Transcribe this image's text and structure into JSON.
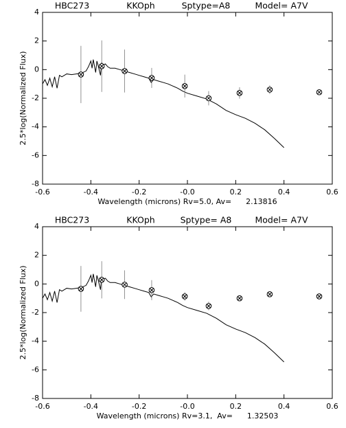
{
  "chart_data": [
    {
      "type": "line",
      "titles": [
        "HBC273",
        "KKOph",
        "Sptype=A8",
        "Model= A7V"
      ],
      "xlabel": "Wavelength (microns) Rv=5.0, Av=      2.13816",
      "ylabel": "2.5*log(Normalized Flux)",
      "xlim": [
        -0.6,
        0.6
      ],
      "ylim": [
        -8,
        4
      ],
      "xticks": [
        -0.6,
        -0.4,
        -0.2,
        {
          "value": 0,
          "label": "-0.0"
        },
        0.2,
        0.4,
        0.6
      ],
      "yticks": [
        4,
        2,
        0,
        -2,
        -4,
        -6,
        -8
      ],
      "series": [
        {
          "type": "line",
          "color": "#000000",
          "x": [
            -0.6,
            -0.59,
            -0.58,
            -0.57,
            -0.56,
            -0.55,
            -0.54,
            -0.53,
            -0.52,
            -0.5,
            -0.48,
            -0.46,
            -0.44,
            -0.42,
            -0.41,
            -0.4,
            -0.395,
            -0.39,
            -0.38,
            -0.375,
            -0.37,
            -0.36,
            -0.355,
            -0.35,
            -0.34,
            -0.33,
            -0.32,
            -0.3,
            -0.28,
            -0.26,
            -0.24,
            -0.22,
            -0.2,
            -0.18,
            -0.16,
            -0.15,
            -0.14,
            -0.12,
            -0.1,
            -0.08,
            -0.06,
            -0.04,
            -0.02,
            0,
            0.04,
            0.08,
            0.12,
            0.16,
            0.2,
            0.24,
            0.28,
            0.32,
            0.36,
            0.4
          ],
          "values": [
            -1.0,
            -0.7,
            -1.1,
            -0.6,
            -1.2,
            -0.5,
            -1.3,
            -0.4,
            -0.5,
            -0.3,
            -0.35,
            -0.3,
            -0.25,
            -0.1,
            0.2,
            0.6,
            0.1,
            0.7,
            -0.2,
            0.6,
            0.3,
            -0.4,
            0.5,
            0.3,
            0.4,
            0.2,
            0.1,
            0.1,
            0.0,
            -0.1,
            -0.2,
            -0.3,
            -0.4,
            -0.5,
            -0.6,
            -0.9,
            -0.7,
            -0.8,
            -0.9,
            -1.0,
            -1.15,
            -1.3,
            -1.5,
            -1.65,
            -1.85,
            -2.05,
            -2.4,
            -2.85,
            -3.15,
            -3.4,
            -3.75,
            -4.2,
            -4.8,
            -5.45
          ]
        },
        {
          "type": "scatter",
          "color": "#000000",
          "x": [
            -0.441,
            -0.355,
            -0.26,
            -0.148,
            -0.011,
            0.088,
            0.216,
            0.341,
            0.546
          ],
          "values": [
            -0.34,
            0.24,
            -0.1,
            -0.58,
            -1.15,
            -2.0,
            -1.63,
            -1.4,
            -1.58
          ],
          "errors": [
            2.0,
            1.8,
            1.5,
            0.7,
            0.8,
            0.5,
            0.4,
            0.3,
            0.2
          ]
        }
      ]
    },
    {
      "type": "line",
      "titles": [
        "HBC273",
        "KKOph",
        "Sptype= A8",
        "Model= A7V"
      ],
      "xlabel": "Wavelength (microns) Rv=3.1,  Av=      1.32503",
      "ylabel": "2.5*log(Normalized Flux)",
      "xlim": [
        -0.6,
        0.6
      ],
      "ylim": [
        -8,
        4
      ],
      "xticks": [
        -0.6,
        -0.4,
        -0.2,
        {
          "value": 0,
          "label": "-0.0"
        },
        0.2,
        0.4,
        0.6
      ],
      "yticks": [
        4,
        2,
        0,
        -2,
        -4,
        -6,
        -8
      ],
      "series": [
        {
          "type": "line",
          "color": "#000000",
          "x": [
            -0.6,
            -0.59,
            -0.58,
            -0.57,
            -0.56,
            -0.55,
            -0.54,
            -0.53,
            -0.52,
            -0.5,
            -0.48,
            -0.46,
            -0.44,
            -0.42,
            -0.41,
            -0.4,
            -0.395,
            -0.39,
            -0.38,
            -0.375,
            -0.37,
            -0.36,
            -0.355,
            -0.35,
            -0.34,
            -0.33,
            -0.32,
            -0.3,
            -0.28,
            -0.26,
            -0.24,
            -0.22,
            -0.2,
            -0.18,
            -0.16,
            -0.15,
            -0.14,
            -0.12,
            -0.1,
            -0.08,
            -0.06,
            -0.04,
            -0.02,
            0,
            0.04,
            0.08,
            0.12,
            0.16,
            0.2,
            0.24,
            0.28,
            0.32,
            0.36,
            0.4
          ],
          "values": [
            -1.0,
            -0.7,
            -1.1,
            -0.6,
            -1.2,
            -0.5,
            -1.3,
            -0.4,
            -0.5,
            -0.3,
            -0.35,
            -0.3,
            -0.25,
            -0.1,
            0.2,
            0.6,
            0.1,
            0.7,
            -0.2,
            0.6,
            0.3,
            -0.4,
            0.5,
            0.3,
            0.4,
            0.2,
            0.1,
            0.1,
            0.0,
            -0.1,
            -0.2,
            -0.3,
            -0.4,
            -0.5,
            -0.6,
            -0.9,
            -0.7,
            -0.8,
            -0.9,
            -1.0,
            -1.15,
            -1.3,
            -1.5,
            -1.65,
            -1.85,
            -2.05,
            -2.4,
            -2.85,
            -3.15,
            -3.4,
            -3.75,
            -4.2,
            -4.8,
            -5.45
          ]
        },
        {
          "type": "scatter",
          "color": "#000000",
          "x": [
            -0.441,
            -0.355,
            -0.26,
            -0.148,
            -0.011,
            0.088,
            0.216,
            0.341,
            0.546
          ],
          "values": [
            -0.34,
            0.29,
            -0.05,
            -0.43,
            -0.87,
            -1.54,
            -1.0,
            -0.72,
            -0.87
          ],
          "errors": [
            1.6,
            1.3,
            1.0,
            0.7,
            0.3,
            0.3,
            0.2,
            0.2,
            0.2
          ]
        }
      ]
    }
  ]
}
